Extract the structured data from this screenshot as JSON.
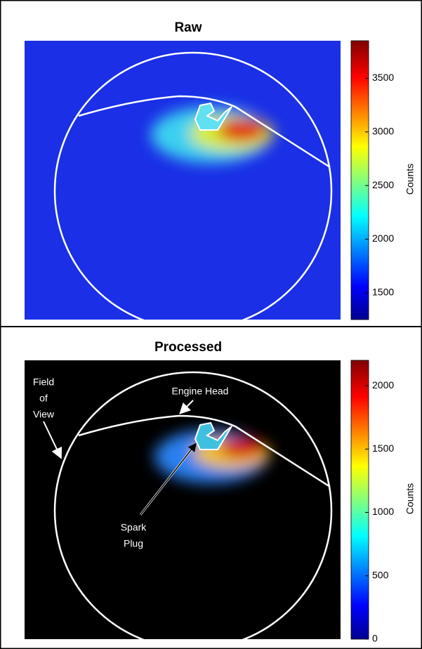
{
  "panels": [
    {
      "title": "Raw",
      "colorbar": {
        "label": "Counts",
        "lim": [
          1250,
          3850
        ],
        "ticks": [
          1500,
          2000,
          2500,
          3000,
          3500
        ]
      }
    },
    {
      "title": "Processed",
      "colorbar": {
        "label": "Counts",
        "lim": [
          0,
          2200
        ],
        "ticks": [
          0,
          500,
          1000,
          1500,
          2000
        ]
      },
      "annotations": {
        "field_of_view": [
          "Field",
          "of",
          "View"
        ],
        "engine_head": "Engine Head",
        "spark_plug": [
          "Spark",
          "Plug"
        ]
      }
    }
  ]
}
